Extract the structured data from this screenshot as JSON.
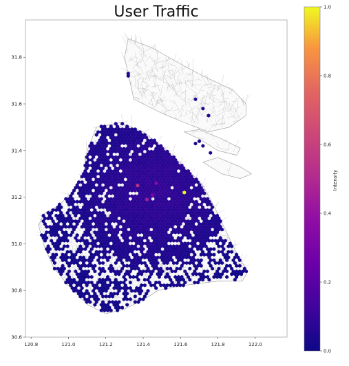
{
  "chart_data": {
    "type": "heatmap",
    "subtype": "hexbin-map",
    "title": "User Traffic",
    "xlabel": "",
    "ylabel": "",
    "xlim": [
      120.77,
      122.17
    ],
    "ylim": [
      30.6,
      31.96
    ],
    "x_ticks": [
      "120.8",
      "121.0",
      "121.2",
      "121.4",
      "121.6",
      "121.8",
      "122.0"
    ],
    "y_ticks": [
      "30.6",
      "30.8",
      "31.0",
      "31.2",
      "31.4",
      "31.6",
      "31.8"
    ],
    "grid": false,
    "colorbar": {
      "label": "Intensity",
      "colormap": "plasma",
      "range": [
        0.0,
        1.0
      ],
      "ticks": [
        "0.0",
        "0.2",
        "0.4",
        "0.6",
        "0.8",
        "1.0"
      ]
    },
    "hotspots": [
      {
        "lon": 121.62,
        "lat": 31.22,
        "intensity": 1.0
      },
      {
        "lon": 121.37,
        "lat": 31.25,
        "intensity": 0.55
      },
      {
        "lon": 121.42,
        "lat": 31.19,
        "intensity": 0.45
      },
      {
        "lon": 121.47,
        "lat": 31.26,
        "intensity": 0.35
      },
      {
        "lon": 121.45,
        "lat": 31.21,
        "intensity": 0.3
      }
    ]
  }
}
